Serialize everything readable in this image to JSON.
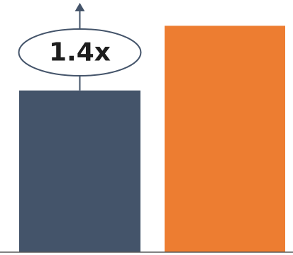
{
  "chart_data": {
    "type": "bar",
    "categories": [
      "",
      ""
    ],
    "values": [
      1.0,
      1.4
    ],
    "colors": [
      "#44546A",
      "#ED7D31"
    ],
    "ylim": [
      0,
      1.45
    ],
    "grid": false,
    "legend": "none",
    "annotation": {
      "label": "1.4x",
      "target_category_index": 0,
      "shape": "ellipse",
      "arrow": "up",
      "stroke_color": "#44546A"
    },
    "baseline_color": "#595959"
  }
}
